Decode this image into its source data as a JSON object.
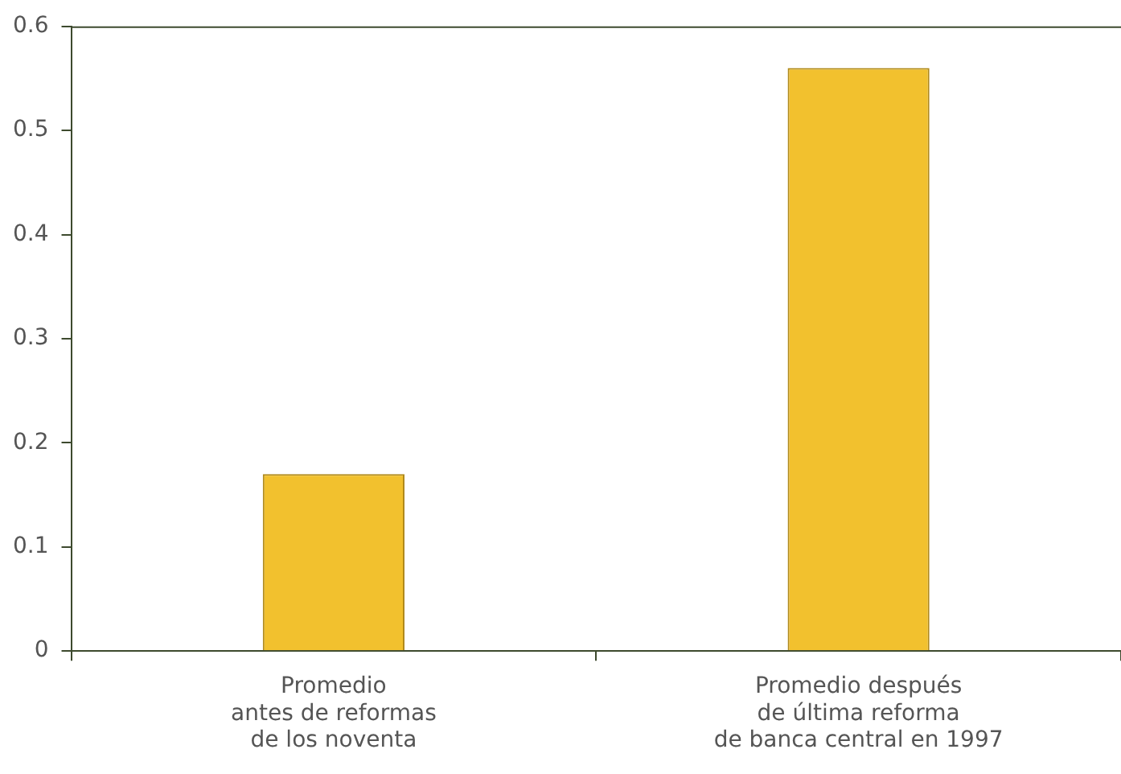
{
  "chart_data": {
    "type": "bar",
    "categories": [
      "Promedio\nantes de reformas\nde los noventa",
      "Promedio después\nde última reforma\nde banca central en 1997"
    ],
    "values": [
      0.17,
      0.56
    ],
    "color": "#f2c12e",
    "ylim": [
      0,
      0.6
    ],
    "yticks": [
      0,
      0.1,
      0.2,
      0.3,
      0.4,
      0.5,
      0.6
    ],
    "grid": false,
    "legend": false
  }
}
